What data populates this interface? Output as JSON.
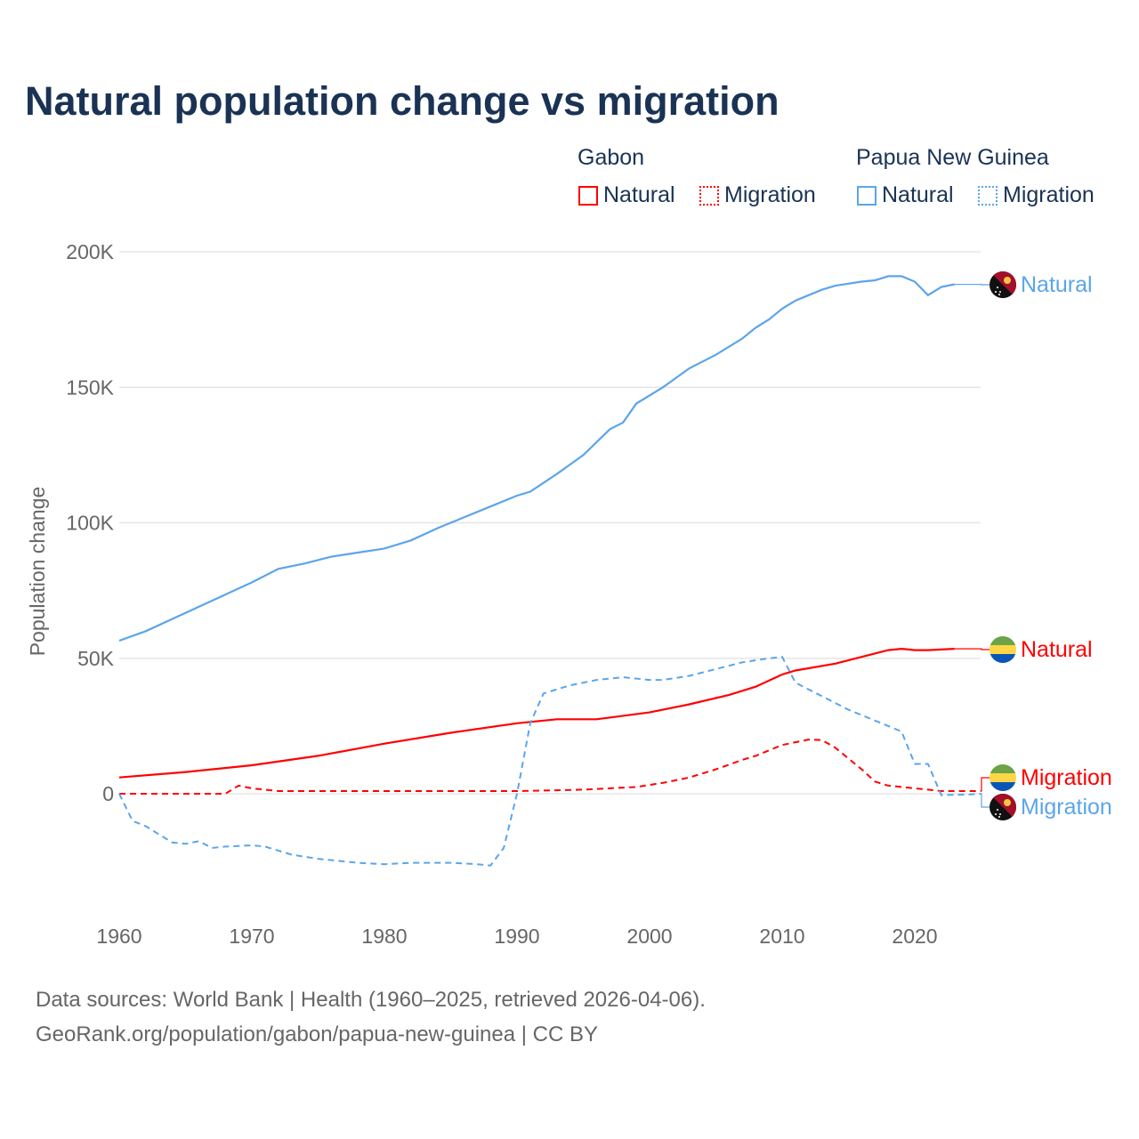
{
  "title": "Natural population change vs migration",
  "legend": {
    "groups": [
      {
        "name": "Gabon",
        "items": [
          {
            "label": "Natural",
            "style": "solid",
            "color": "#ff0000"
          },
          {
            "label": "Migration",
            "style": "dotted",
            "color": "#ff0000"
          }
        ]
      },
      {
        "name": "Papua New Guinea",
        "items": [
          {
            "label": "Natural",
            "style": "solid",
            "color": "#5ba5ea"
          },
          {
            "label": "Migration",
            "style": "dotted",
            "color": "#5ba5ea"
          }
        ]
      }
    ]
  },
  "source_line1": "Data sources: World Bank | Health (1960–2025, retrieved 2026-04-06).",
  "source_line2": "GeoRank.org/population/gabon/papua-new-guinea | CC BY",
  "chart_data": {
    "type": "line",
    "title": "Natural population change vs migration",
    "xlabel": "",
    "ylabel": "Population change",
    "xlim": [
      1960,
      2025
    ],
    "ylim": [
      -40000,
      200000
    ],
    "xticks": [
      1960,
      1970,
      1980,
      1990,
      2000,
      2010,
      2020
    ],
    "yticks": [
      {
        "v": 0,
        "label": "0"
      },
      {
        "v": 50000,
        "label": "50K"
      },
      {
        "v": 100000,
        "label": "100K"
      },
      {
        "v": 150000,
        "label": "150K"
      },
      {
        "v": 200000,
        "label": "200K"
      }
    ],
    "grid": true,
    "series": [
      {
        "name": "Papua New Guinea Natural",
        "end_label": "Natural",
        "country": "png",
        "color": "#5ba5ea",
        "dash": false,
        "points": [
          [
            1960,
            56500
          ],
          [
            1962,
            60000
          ],
          [
            1964,
            64500
          ],
          [
            1966,
            69000
          ],
          [
            1968,
            73500
          ],
          [
            1970,
            78000
          ],
          [
            1972,
            83000
          ],
          [
            1974,
            85000
          ],
          [
            1976,
            87500
          ],
          [
            1978,
            89000
          ],
          [
            1980,
            90500
          ],
          [
            1982,
            93500
          ],
          [
            1984,
            98000
          ],
          [
            1986,
            102000
          ],
          [
            1988,
            106000
          ],
          [
            1990,
            110000
          ],
          [
            1991,
            111500
          ],
          [
            1993,
            118000
          ],
          [
            1995,
            125000
          ],
          [
            1997,
            134500
          ],
          [
            1998,
            137000
          ],
          [
            1999,
            144000
          ],
          [
            2001,
            150000
          ],
          [
            2003,
            157000
          ],
          [
            2005,
            162000
          ],
          [
            2007,
            168000
          ],
          [
            2008,
            172000
          ],
          [
            2009,
            175000
          ],
          [
            2010,
            179000
          ],
          [
            2011,
            182000
          ],
          [
            2012,
            184000
          ],
          [
            2013,
            186000
          ],
          [
            2014,
            187500
          ],
          [
            2016,
            189000
          ],
          [
            2017,
            189500
          ],
          [
            2018,
            191000
          ],
          [
            2019,
            191000
          ],
          [
            2020,
            189000
          ],
          [
            2021,
            184000
          ],
          [
            2022,
            187000
          ],
          [
            2023,
            188000
          ]
        ]
      },
      {
        "name": "Gabon Natural",
        "end_label": "Natural",
        "country": "gabon",
        "color": "#ff0000",
        "dash": false,
        "points": [
          [
            1960,
            6000
          ],
          [
            1965,
            8000
          ],
          [
            1970,
            10500
          ],
          [
            1975,
            14000
          ],
          [
            1980,
            18500
          ],
          [
            1985,
            22500
          ],
          [
            1990,
            26000
          ],
          [
            1993,
            27500
          ],
          [
            1996,
            27500
          ],
          [
            2000,
            30000
          ],
          [
            2003,
            33000
          ],
          [
            2006,
            36500
          ],
          [
            2008,
            39500
          ],
          [
            2010,
            44000
          ],
          [
            2011,
            45500
          ],
          [
            2014,
            48000
          ],
          [
            2016,
            50500
          ],
          [
            2018,
            53000
          ],
          [
            2019,
            53500
          ],
          [
            2020,
            53000
          ],
          [
            2021,
            53000
          ],
          [
            2023,
            53500
          ]
        ]
      },
      {
        "name": "Gabon Migration",
        "end_label": "Migration",
        "country": "gabon",
        "color": "#ff0000",
        "dash": true,
        "points": [
          [
            1960,
            0
          ],
          [
            1968,
            0
          ],
          [
            1969,
            3000
          ],
          [
            1970,
            2000
          ],
          [
            1972,
            1000
          ],
          [
            1975,
            1000
          ],
          [
            1990,
            1000
          ],
          [
            1995,
            1500
          ],
          [
            1999,
            2500
          ],
          [
            2001,
            4000
          ],
          [
            2003,
            6000
          ],
          [
            2005,
            9000
          ],
          [
            2007,
            12500
          ],
          [
            2008,
            14000
          ],
          [
            2010,
            18000
          ],
          [
            2012,
            20000
          ],
          [
            2013,
            19800
          ],
          [
            2014,
            17000
          ],
          [
            2016,
            9000
          ],
          [
            2017,
            4500
          ],
          [
            2018,
            3000
          ],
          [
            2020,
            2000
          ],
          [
            2021,
            1500
          ],
          [
            2022,
            1000
          ],
          [
            2025,
            1000
          ]
        ]
      },
      {
        "name": "Papua New Guinea Migration",
        "end_label": "Migration",
        "country": "png",
        "color": "#5ba5ea",
        "dash": true,
        "points": [
          [
            1960,
            0
          ],
          [
            1961,
            -10000
          ],
          [
            1962,
            -12000
          ],
          [
            1963,
            -15000
          ],
          [
            1964,
            -18000
          ],
          [
            1965,
            -18500
          ],
          [
            1966,
            -17500
          ],
          [
            1967,
            -20000
          ],
          [
            1968,
            -19500
          ],
          [
            1970,
            -19000
          ],
          [
            1971,
            -19500
          ],
          [
            1972,
            -21000
          ],
          [
            1973,
            -22500
          ],
          [
            1975,
            -24000
          ],
          [
            1978,
            -25500
          ],
          [
            1980,
            -26000
          ],
          [
            1982,
            -25500
          ],
          [
            1985,
            -25500
          ],
          [
            1987,
            -26000
          ],
          [
            1988,
            -26500
          ],
          [
            1989,
            -20000
          ],
          [
            1990,
            0
          ],
          [
            1991,
            26000
          ],
          [
            1992,
            37000
          ],
          [
            1994,
            40000
          ],
          [
            1996,
            42000
          ],
          [
            1998,
            43000
          ],
          [
            2000,
            42000
          ],
          [
            2001,
            42000
          ],
          [
            2003,
            43500
          ],
          [
            2005,
            46000
          ],
          [
            2007,
            48500
          ],
          [
            2009,
            50000
          ],
          [
            2010,
            50500
          ],
          [
            2011,
            41000
          ],
          [
            2013,
            36000
          ],
          [
            2015,
            31000
          ],
          [
            2017,
            27000
          ],
          [
            2019,
            23000
          ],
          [
            2020,
            11000
          ],
          [
            2021,
            11000
          ],
          [
            2022,
            -500
          ],
          [
            2024,
            -300
          ],
          [
            2025,
            0
          ]
        ]
      }
    ]
  }
}
